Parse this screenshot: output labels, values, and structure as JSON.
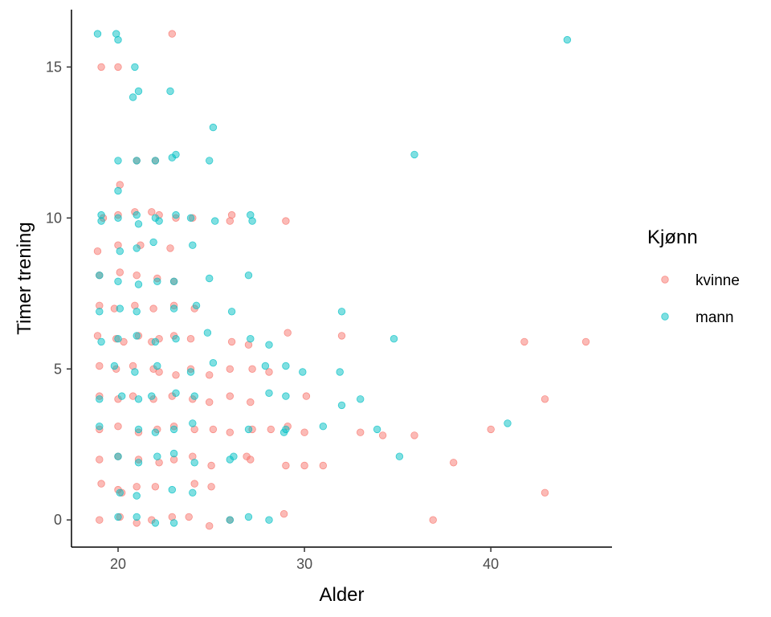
{
  "chart_data": {
    "type": "scatter",
    "xlabel": "Alder",
    "ylabel": "Timer trening",
    "xlim": [
      17.5,
      46.5
    ],
    "ylim": [
      -0.9,
      16.9
    ],
    "x_ticks": [
      20,
      30,
      40
    ],
    "y_ticks": [
      0,
      5,
      10,
      15
    ],
    "grid": false,
    "jitter": true,
    "point_alpha": 0.5,
    "legend": {
      "title": "Kjønn",
      "position": "right"
    },
    "series": [
      {
        "name": "kvinne",
        "color": "#F8766D",
        "points": [
          [
            19.1,
            15.0
          ],
          [
            20.0,
            15.0
          ],
          [
            22.9,
            16.1
          ],
          [
            20.1,
            11.1
          ],
          [
            21.0,
            11.9
          ],
          [
            22.0,
            11.9
          ],
          [
            19.2,
            10.0
          ],
          [
            20.0,
            10.1
          ],
          [
            20.9,
            10.2
          ],
          [
            21.8,
            10.2
          ],
          [
            22.2,
            10.1
          ],
          [
            23.1,
            10.0
          ],
          [
            24.0,
            10.0
          ],
          [
            26.1,
            10.1
          ],
          [
            26.0,
            9.9
          ],
          [
            29.0,
            9.9
          ],
          [
            18.9,
            8.9
          ],
          [
            20.0,
            9.1
          ],
          [
            21.2,
            9.1
          ],
          [
            22.8,
            9.0
          ],
          [
            19.0,
            8.1
          ],
          [
            20.1,
            8.2
          ],
          [
            21.0,
            8.1
          ],
          [
            22.1,
            8.0
          ],
          [
            23.0,
            7.9
          ],
          [
            19.0,
            7.1
          ],
          [
            19.8,
            7.0
          ],
          [
            20.9,
            7.1
          ],
          [
            21.9,
            7.0
          ],
          [
            23.0,
            7.1
          ],
          [
            24.1,
            7.0
          ],
          [
            18.9,
            6.1
          ],
          [
            19.9,
            6.0
          ],
          [
            20.3,
            5.9
          ],
          [
            21.1,
            6.1
          ],
          [
            21.8,
            5.9
          ],
          [
            22.2,
            6.0
          ],
          [
            23.0,
            6.1
          ],
          [
            23.9,
            6.0
          ],
          [
            26.1,
            5.9
          ],
          [
            27.0,
            5.8
          ],
          [
            29.1,
            6.2
          ],
          [
            32.0,
            6.1
          ],
          [
            41.8,
            5.9
          ],
          [
            45.1,
            5.9
          ],
          [
            19.0,
            5.1
          ],
          [
            19.9,
            5.0
          ],
          [
            20.8,
            5.1
          ],
          [
            21.9,
            5.0
          ],
          [
            22.2,
            4.9
          ],
          [
            23.1,
            4.8
          ],
          [
            23.9,
            5.0
          ],
          [
            24.9,
            4.8
          ],
          [
            26.0,
            5.0
          ],
          [
            27.2,
            5.0
          ],
          [
            28.1,
            4.9
          ],
          [
            19.0,
            4.1
          ],
          [
            20.0,
            4.0
          ],
          [
            20.8,
            4.1
          ],
          [
            21.9,
            4.0
          ],
          [
            22.9,
            4.1
          ],
          [
            24.0,
            4.0
          ],
          [
            24.9,
            3.9
          ],
          [
            26.0,
            4.1
          ],
          [
            27.1,
            3.9
          ],
          [
            30.1,
            4.1
          ],
          [
            42.9,
            4.0
          ],
          [
            19.0,
            3.0
          ],
          [
            20.0,
            3.1
          ],
          [
            21.1,
            2.9
          ],
          [
            22.1,
            3.0
          ],
          [
            23.0,
            3.1
          ],
          [
            24.1,
            3.0
          ],
          [
            25.1,
            3.0
          ],
          [
            26.0,
            2.9
          ],
          [
            27.2,
            3.0
          ],
          [
            28.2,
            3.0
          ],
          [
            29.1,
            3.1
          ],
          [
            30.0,
            2.9
          ],
          [
            33.0,
            2.9
          ],
          [
            34.2,
            2.8
          ],
          [
            35.9,
            2.8
          ],
          [
            40.0,
            3.0
          ],
          [
            19.0,
            2.0
          ],
          [
            20.0,
            2.1
          ],
          [
            21.1,
            2.0
          ],
          [
            22.2,
            1.9
          ],
          [
            23.0,
            2.0
          ],
          [
            24.0,
            2.1
          ],
          [
            25.0,
            1.8
          ],
          [
            26.9,
            2.1
          ],
          [
            27.1,
            2.0
          ],
          [
            29.0,
            1.8
          ],
          [
            30.0,
            1.8
          ],
          [
            31.0,
            1.8
          ],
          [
            38.0,
            1.9
          ],
          [
            19.1,
            1.2
          ],
          [
            20.0,
            1.0
          ],
          [
            20.2,
            0.9
          ],
          [
            21.0,
            1.1
          ],
          [
            22.0,
            1.1
          ],
          [
            24.1,
            1.2
          ],
          [
            25.0,
            1.1
          ],
          [
            42.9,
            0.9
          ],
          [
            19.0,
            0.0
          ],
          [
            20.1,
            0.1
          ],
          [
            21.0,
            -0.1
          ],
          [
            21.8,
            0.0
          ],
          [
            22.9,
            0.1
          ],
          [
            23.8,
            0.1
          ],
          [
            24.9,
            -0.2
          ],
          [
            26.0,
            0.0
          ],
          [
            28.9,
            0.2
          ],
          [
            36.9,
            0.0
          ]
        ]
      },
      {
        "name": "mann",
        "color": "#00BFC4",
        "points": [
          [
            18.9,
            16.1
          ],
          [
            19.9,
            16.1
          ],
          [
            20.0,
            15.9
          ],
          [
            44.1,
            15.9
          ],
          [
            20.9,
            15.0
          ],
          [
            20.8,
            14.0
          ],
          [
            21.1,
            14.2
          ],
          [
            22.8,
            14.2
          ],
          [
            25.1,
            13.0
          ],
          [
            35.9,
            12.1
          ],
          [
            20.0,
            11.9
          ],
          [
            21.0,
            11.9
          ],
          [
            22.0,
            11.9
          ],
          [
            22.9,
            12.0
          ],
          [
            23.1,
            12.1
          ],
          [
            24.9,
            11.9
          ],
          [
            20.0,
            10.9
          ],
          [
            19.1,
            10.1
          ],
          [
            20.0,
            10.0
          ],
          [
            21.0,
            10.1
          ],
          [
            21.1,
            9.8
          ],
          [
            22.0,
            10.0
          ],
          [
            22.2,
            9.9
          ],
          [
            23.1,
            10.1
          ],
          [
            23.9,
            10.0
          ],
          [
            25.2,
            9.9
          ],
          [
            27.1,
            10.1
          ],
          [
            27.2,
            9.9
          ],
          [
            19.1,
            9.9
          ],
          [
            20.1,
            8.9
          ],
          [
            21.0,
            9.0
          ],
          [
            21.9,
            9.2
          ],
          [
            24.0,
            9.1
          ],
          [
            19.0,
            8.1
          ],
          [
            20.0,
            7.9
          ],
          [
            21.1,
            7.8
          ],
          [
            22.1,
            7.9
          ],
          [
            23.0,
            7.9
          ],
          [
            24.9,
            8.0
          ],
          [
            27.0,
            8.1
          ],
          [
            19.0,
            6.9
          ],
          [
            20.1,
            7.0
          ],
          [
            21.0,
            6.9
          ],
          [
            23.0,
            7.0
          ],
          [
            24.2,
            7.1
          ],
          [
            26.1,
            6.9
          ],
          [
            32.0,
            6.9
          ],
          [
            19.1,
            5.9
          ],
          [
            20.0,
            6.0
          ],
          [
            21.0,
            6.1
          ],
          [
            22.0,
            5.9
          ],
          [
            23.1,
            6.0
          ],
          [
            24.8,
            6.2
          ],
          [
            27.1,
            6.0
          ],
          [
            28.1,
            5.8
          ],
          [
            34.8,
            6.0
          ],
          [
            19.8,
            5.1
          ],
          [
            20.9,
            4.9
          ],
          [
            22.1,
            5.1
          ],
          [
            23.9,
            4.9
          ],
          [
            25.1,
            5.2
          ],
          [
            27.9,
            5.1
          ],
          [
            29.0,
            5.1
          ],
          [
            29.9,
            4.9
          ],
          [
            31.9,
            4.9
          ],
          [
            19.0,
            4.0
          ],
          [
            20.2,
            4.1
          ],
          [
            21.1,
            4.0
          ],
          [
            21.8,
            4.1
          ],
          [
            23.1,
            4.2
          ],
          [
            24.1,
            4.1
          ],
          [
            28.1,
            4.2
          ],
          [
            29.0,
            4.1
          ],
          [
            32.0,
            3.8
          ],
          [
            33.0,
            4.0
          ],
          [
            19.0,
            3.1
          ],
          [
            21.1,
            3.0
          ],
          [
            22.0,
            2.9
          ],
          [
            23.0,
            3.0
          ],
          [
            24.0,
            3.2
          ],
          [
            27.0,
            3.0
          ],
          [
            28.9,
            2.9
          ],
          [
            29.0,
            3.0
          ],
          [
            31.0,
            3.1
          ],
          [
            33.9,
            3.0
          ],
          [
            40.9,
            3.2
          ],
          [
            20.0,
            2.1
          ],
          [
            21.1,
            1.9
          ],
          [
            22.1,
            2.1
          ],
          [
            23.0,
            2.2
          ],
          [
            24.1,
            1.9
          ],
          [
            26.0,
            2.0
          ],
          [
            26.2,
            2.1
          ],
          [
            35.1,
            2.1
          ],
          [
            20.1,
            0.9
          ],
          [
            21.0,
            0.8
          ],
          [
            22.9,
            1.0
          ],
          [
            24.0,
            0.9
          ],
          [
            20.0,
            0.1
          ],
          [
            21.0,
            0.1
          ],
          [
            22.0,
            -0.1
          ],
          [
            23.0,
            -0.1
          ],
          [
            26.0,
            0.0
          ],
          [
            27.0,
            0.1
          ],
          [
            28.1,
            0.0
          ]
        ]
      }
    ]
  }
}
